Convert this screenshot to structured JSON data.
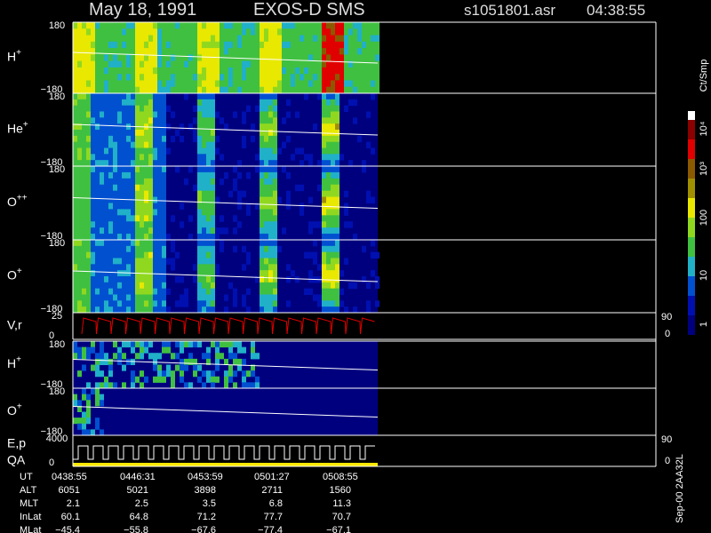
{
  "header": {
    "date": "May 18, 1991",
    "instrument": "EXOS-D SMS",
    "file": "s1051801.asr",
    "time": "04:38:55"
  },
  "panels": [
    {
      "label": "H",
      "charge": "+",
      "top": "180",
      "bottom": "−180"
    },
    {
      "label": "He",
      "charge": "+",
      "top": "180",
      "bottom": "−180"
    },
    {
      "label": "O",
      "charge": "++",
      "top": "180",
      "bottom": "−180"
    },
    {
      "label": "O",
      "charge": "+",
      "top": "180",
      "bottom": "−180"
    },
    {
      "label": "V,r",
      "top": "25",
      "bottom": "0",
      "right_top": "90",
      "right_bottom": "0"
    },
    {
      "label": "H",
      "charge": "+",
      "top": "180",
      "bottom": "−180"
    },
    {
      "label": "O",
      "charge": "+",
      "top": "180",
      "bottom": "−180"
    },
    {
      "label": "E,p",
      "label2": "QA",
      "top": "4000",
      "bottom": "0",
      "right_top": "90",
      "right_bottom": "0"
    }
  ],
  "colorbar": {
    "title": "Ct/Smp",
    "ticks": [
      "10⁴",
      "10³",
      "100",
      "10",
      "1"
    ]
  },
  "side_note": "Sep-00  2AA32L",
  "table": {
    "rows": [
      [
        "UT",
        "0438:55",
        "0446:31",
        "0453:59",
        "0501:27",
        "0508:55"
      ],
      [
        "ALT",
        "6051",
        "5021",
        "3898",
        "2711",
        "1560"
      ],
      [
        "MLT",
        "2.1",
        "2.5",
        "3.5",
        "6.8",
        "11.3"
      ],
      [
        "InLat",
        "60.1",
        "64.8",
        "71.2",
        "77.7",
        "70.7"
      ],
      [
        "MLat",
        "−45.4",
        "−55.8",
        "−67.6",
        "−77.4",
        "−67.1"
      ]
    ]
  }
}
